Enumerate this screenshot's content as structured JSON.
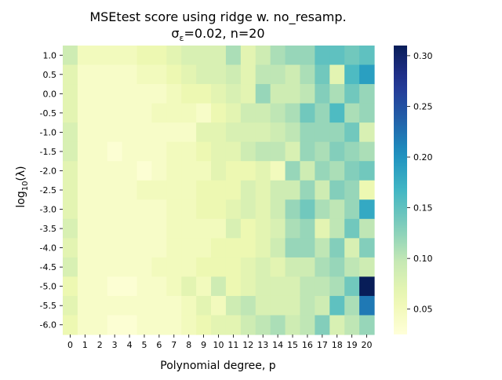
{
  "chart_data": {
    "type": "heatmap",
    "title": "MSEtest score using ridge w. no_resamp.",
    "subtitle_prefix": "σ",
    "subtitle_sub": "ε",
    "subtitle_suffix": "=0.02,  n=20",
    "xlabel": "Polynomial degree, p",
    "ylabel_prefix": "log",
    "ylabel_sub": "10",
    "ylabel_suffix": "(λ)",
    "x": [
      "0",
      "1",
      "2",
      "3",
      "4",
      "5",
      "6",
      "7",
      "8",
      "9",
      "10",
      "11",
      "12",
      "13",
      "14",
      "15",
      "16",
      "17",
      "18",
      "19",
      "20"
    ],
    "y": [
      "1.0",
      "0.5",
      "0.0",
      "-0.5",
      "-1.0",
      "-1.5",
      "-2.0",
      "-2.5",
      "-3.0",
      "-3.5",
      "-4.0",
      "-4.5",
      "-5.0",
      "-5.5",
      "-6.0"
    ],
    "colorbar": {
      "range": [
        0.025,
        0.31
      ],
      "ticks": [
        0.05,
        0.1,
        0.15,
        0.2,
        0.25,
        0.3
      ],
      "tick_labels": [
        "0.05",
        "0.10",
        "0.15",
        "0.20",
        "0.25",
        "0.30"
      ],
      "colormap": "YlGnBu"
    },
    "values": [
      [
        0.09,
        0.05,
        0.05,
        0.05,
        0.05,
        0.06,
        0.06,
        0.07,
        0.08,
        0.08,
        0.08,
        0.11,
        0.07,
        0.09,
        0.11,
        0.12,
        0.12,
        0.15,
        0.15,
        0.14,
        0.15
      ],
      [
        0.07,
        0.04,
        0.04,
        0.04,
        0.04,
        0.05,
        0.05,
        0.06,
        0.07,
        0.08,
        0.08,
        0.09,
        0.07,
        0.1,
        0.1,
        0.09,
        0.11,
        0.14,
        0.07,
        0.16,
        0.19
      ],
      [
        0.07,
        0.04,
        0.04,
        0.04,
        0.04,
        0.04,
        0.04,
        0.05,
        0.06,
        0.06,
        0.07,
        0.08,
        0.07,
        0.12,
        0.09,
        0.09,
        0.1,
        0.13,
        0.11,
        0.14,
        0.12
      ],
      [
        0.07,
        0.04,
        0.04,
        0.04,
        0.04,
        0.04,
        0.05,
        0.05,
        0.05,
        0.04,
        0.06,
        0.07,
        0.09,
        0.09,
        0.1,
        0.11,
        0.14,
        0.12,
        0.16,
        0.11,
        0.12
      ],
      [
        0.08,
        0.04,
        0.04,
        0.04,
        0.04,
        0.04,
        0.04,
        0.04,
        0.04,
        0.07,
        0.07,
        0.08,
        0.08,
        0.08,
        0.09,
        0.1,
        0.12,
        0.12,
        0.12,
        0.14,
        0.08
      ],
      [
        0.08,
        0.04,
        0.04,
        0.03,
        0.04,
        0.04,
        0.04,
        0.05,
        0.05,
        0.06,
        0.07,
        0.07,
        0.09,
        0.1,
        0.1,
        0.08,
        0.12,
        0.11,
        0.13,
        0.12,
        0.11
      ],
      [
        0.07,
        0.04,
        0.04,
        0.04,
        0.04,
        0.03,
        0.04,
        0.05,
        0.05,
        0.05,
        0.07,
        0.06,
        0.06,
        0.07,
        0.05,
        0.12,
        0.09,
        0.12,
        0.11,
        0.13,
        0.14
      ],
      [
        0.07,
        0.04,
        0.04,
        0.04,
        0.04,
        0.05,
        0.05,
        0.05,
        0.05,
        0.06,
        0.06,
        0.06,
        0.08,
        0.07,
        0.09,
        0.09,
        0.12,
        0.09,
        0.13,
        0.12,
        0.06
      ],
      [
        0.07,
        0.04,
        0.04,
        0.04,
        0.04,
        0.04,
        0.04,
        0.05,
        0.05,
        0.06,
        0.06,
        0.07,
        0.08,
        0.07,
        0.09,
        0.12,
        0.14,
        0.11,
        0.1,
        0.12,
        0.18
      ],
      [
        0.08,
        0.04,
        0.04,
        0.04,
        0.04,
        0.04,
        0.04,
        0.05,
        0.05,
        0.05,
        0.05,
        0.08,
        0.06,
        0.07,
        0.08,
        0.11,
        0.12,
        0.07,
        0.1,
        0.14,
        0.1
      ],
      [
        0.07,
        0.04,
        0.04,
        0.04,
        0.04,
        0.04,
        0.04,
        0.05,
        0.05,
        0.05,
        0.06,
        0.06,
        0.06,
        0.07,
        0.09,
        0.12,
        0.12,
        0.1,
        0.13,
        0.08,
        0.13
      ],
      [
        0.08,
        0.04,
        0.04,
        0.04,
        0.04,
        0.04,
        0.05,
        0.05,
        0.05,
        0.06,
        0.06,
        0.06,
        0.07,
        0.08,
        0.07,
        0.09,
        0.09,
        0.11,
        0.12,
        0.1,
        0.09
      ],
      [
        0.06,
        0.04,
        0.04,
        0.03,
        0.03,
        0.04,
        0.04,
        0.05,
        0.07,
        0.05,
        0.09,
        0.06,
        0.07,
        0.08,
        0.08,
        0.08,
        0.1,
        0.1,
        0.11,
        0.14,
        0.31
      ],
      [
        0.07,
        0.04,
        0.04,
        0.04,
        0.04,
        0.04,
        0.04,
        0.04,
        0.05,
        0.07,
        0.05,
        0.09,
        0.1,
        0.08,
        0.08,
        0.08,
        0.1,
        0.09,
        0.15,
        0.11,
        0.22
      ],
      [
        0.06,
        0.04,
        0.04,
        0.03,
        0.03,
        0.04,
        0.04,
        0.04,
        0.05,
        0.06,
        0.07,
        0.07,
        0.09,
        0.1,
        0.11,
        0.09,
        0.1,
        0.13,
        0.08,
        0.1,
        0.12
      ]
    ]
  }
}
